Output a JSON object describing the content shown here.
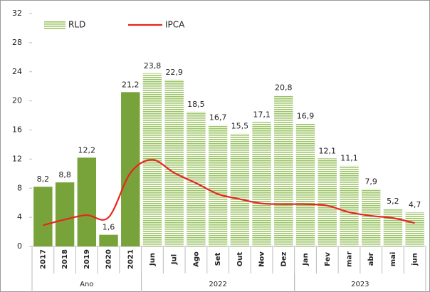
{
  "chart_data": {
    "type": "bar_line",
    "categories": [
      "2017",
      "2018",
      "2019",
      "2020",
      "2021",
      "Jun",
      "Jul",
      "Ago",
      "Set",
      "Out",
      "Nov",
      "Dez",
      "Jan",
      "Fev",
      "mar",
      "abr",
      "mai",
      "jun"
    ],
    "groups": [
      {
        "label": "Ano",
        "start": 0,
        "end": 4
      },
      {
        "label": "2022",
        "start": 5,
        "end": 11
      },
      {
        "label": "2023",
        "start": 12,
        "end": 17
      }
    ],
    "series": [
      {
        "name": "RLD",
        "type": "bar",
        "color": "#78a33b",
        "fill": [
          "solid",
          "solid",
          "solid",
          "solid",
          "solid",
          "striped",
          "striped",
          "striped",
          "striped",
          "striped",
          "striped",
          "striped",
          "striped",
          "striped",
          "striped",
          "striped",
          "striped",
          "striped"
        ],
        "values": [
          8.2,
          8.8,
          12.2,
          1.6,
          21.2,
          23.8,
          22.9,
          18.5,
          16.7,
          15.5,
          17.1,
          20.8,
          16.9,
          12.1,
          11.1,
          7.9,
          5.2,
          4.7
        ],
        "value_labels": [
          "8,2",
          "8,8",
          "12,2",
          "1,6",
          "21,2",
          "23,8",
          "22,9",
          "18,5",
          "16,7",
          "15,5",
          "17,1",
          "20,8",
          "16,9",
          "12,1",
          "11,1",
          "7,9",
          "5,2",
          "4,7"
        ]
      },
      {
        "name": "IPCA",
        "type": "line",
        "color": "#e8251f",
        "values": [
          2.9,
          3.7,
          4.3,
          4.0,
          10.1,
          11.9,
          10.1,
          8.7,
          7.2,
          6.5,
          5.9,
          5.8,
          5.8,
          5.6,
          4.7,
          4.2,
          3.9,
          3.2
        ]
      }
    ],
    "ylim": [
      0,
      32
    ],
    "yticks": [
      0,
      4,
      8,
      12,
      16,
      20,
      24,
      28,
      32
    ],
    "legend": "top-left"
  }
}
